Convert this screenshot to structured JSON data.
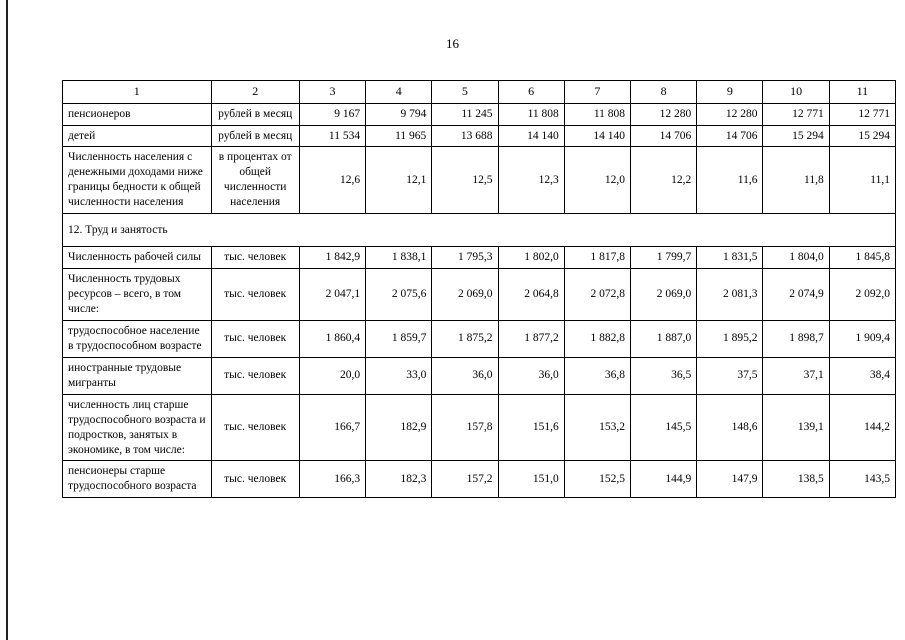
{
  "page": {
    "number": "16"
  },
  "table": {
    "header": [
      "1",
      "2",
      "3",
      "4",
      "5",
      "6",
      "7",
      "8",
      "9",
      "10",
      "11"
    ],
    "rows": [
      {
        "type": "data",
        "label": "пенсионеров",
        "unit": "рублей в месяц",
        "values": [
          "9 167",
          "9 794",
          "11 245",
          "11 808",
          "11 808",
          "12 280",
          "12 280",
          "12 771",
          "12 771"
        ]
      },
      {
        "type": "data",
        "label": "детей",
        "unit": "рублей в месяц",
        "values": [
          "11 534",
          "11 965",
          "13 688",
          "14 140",
          "14 140",
          "14 706",
          "14 706",
          "15 294",
          "15 294"
        ]
      },
      {
        "type": "data",
        "label": "Численность населения с денежными доходами ниже границы бедности к общей численности населения",
        "unit": "в процентах от общей численности населения",
        "values": [
          "12,6",
          "12,1",
          "12,5",
          "12,3",
          "12,0",
          "12,2",
          "11,6",
          "11,8",
          "11,1"
        ]
      },
      {
        "type": "section",
        "label": "12. Труд и занятость"
      },
      {
        "type": "data",
        "label": "Численность рабочей силы",
        "unit": "тыс. человек",
        "values": [
          "1 842,9",
          "1 838,1",
          "1 795,3",
          "1 802,0",
          "1 817,8",
          "1 799,7",
          "1 831,5",
          "1 804,0",
          "1 845,8"
        ]
      },
      {
        "type": "data",
        "label": "Численность трудовых ресурсов – всего, в том числе:",
        "unit": "тыс. человек",
        "values": [
          "2 047,1",
          "2 075,6",
          "2 069,0",
          "2 064,8",
          "2 072,8",
          "2 069,0",
          "2 081,3",
          "2 074,9",
          "2 092,0"
        ]
      },
      {
        "type": "data",
        "label": "трудоспособное население в трудоспособном возрасте",
        "unit": "тыс. человек",
        "values": [
          "1 860,4",
          "1 859,7",
          "1 875,2",
          "1 877,2",
          "1 882,8",
          "1 887,0",
          "1 895,2",
          "1 898,7",
          "1 909,4"
        ]
      },
      {
        "type": "data",
        "label": "иностранные трудовые мигранты",
        "unit": "тыс. человек",
        "values": [
          "20,0",
          "33,0",
          "36,0",
          "36,0",
          "36,8",
          "36,5",
          "37,5",
          "37,1",
          "38,4"
        ]
      },
      {
        "type": "data",
        "label": "численность лиц старше трудоспособного возраста и подростков, занятых в экономике, в том числе:",
        "unit": "тыс. человек",
        "values": [
          "166,7",
          "182,9",
          "157,8",
          "151,6",
          "153,2",
          "145,5",
          "148,6",
          "139,1",
          "144,2"
        ]
      },
      {
        "type": "data",
        "label": "пенсионеры старше трудоспособного возраста",
        "unit": "тыс. человек",
        "values": [
          "166,3",
          "182,3",
          "157,2",
          "151,0",
          "152,5",
          "144,9",
          "147,9",
          "138,5",
          "143,5"
        ]
      }
    ]
  }
}
